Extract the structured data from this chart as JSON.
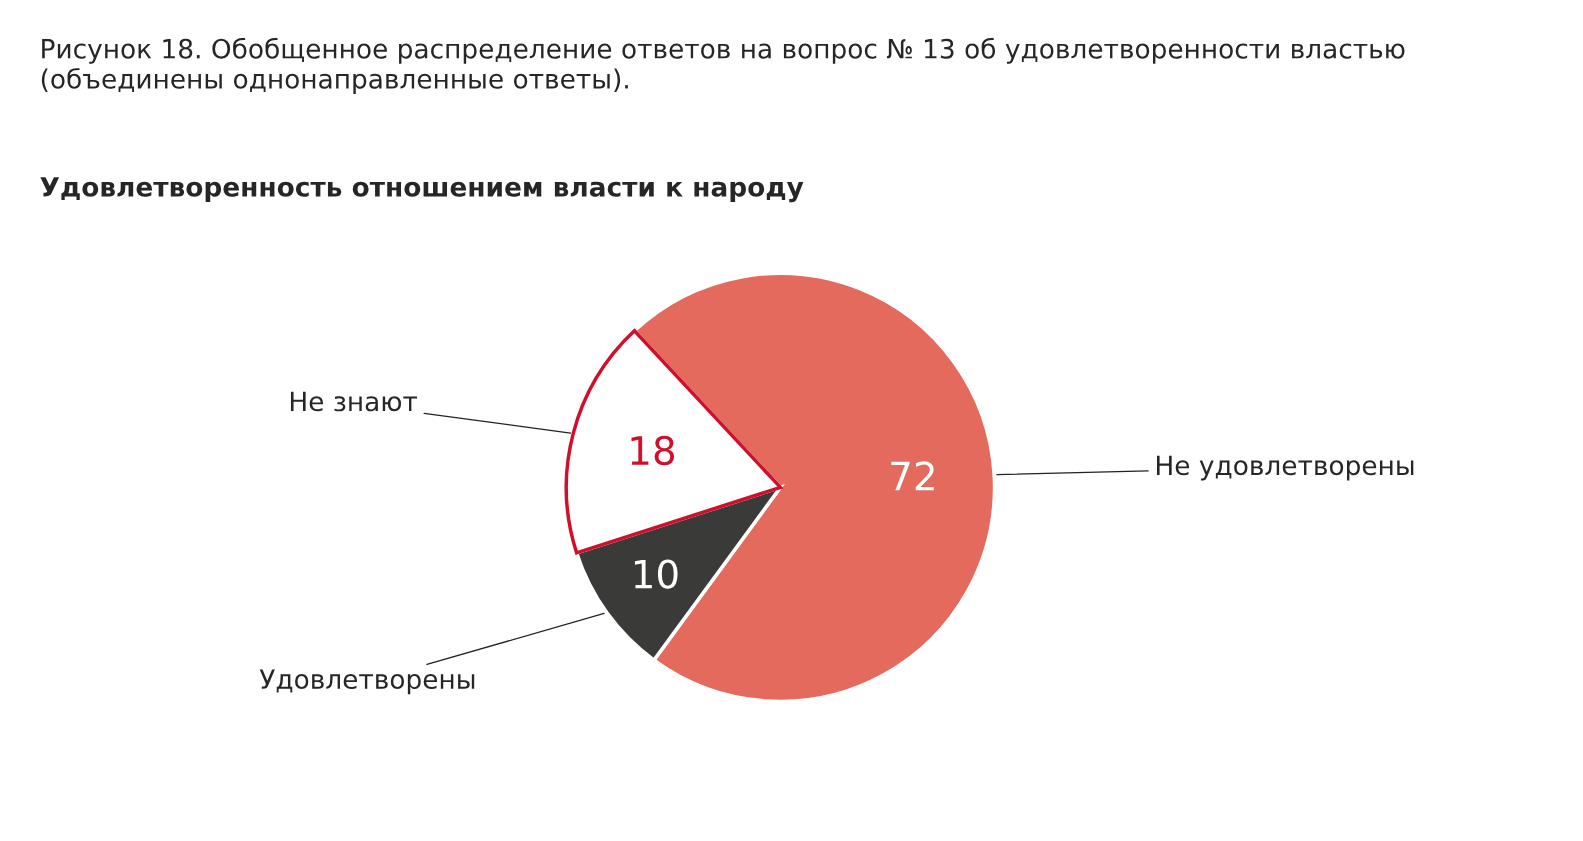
{
  "chart_data": {
    "type": "pie",
    "title": "Рисунок 18. Обобщенное распределение ответов на вопрос № 13 об удовлетворенности властью (объединены однонаправленные ответы).",
    "subtitle": "Удовлетворенность отношением власти к народу",
    "categories": [
      "Не удовлетворены",
      "Удовлетворены",
      "Не знают"
    ],
    "values": [
      72,
      10,
      18
    ],
    "colors": [
      "#e36a5c",
      "#3a3a38",
      "#ffffff"
    ],
    "data_labels": true
  }
}
